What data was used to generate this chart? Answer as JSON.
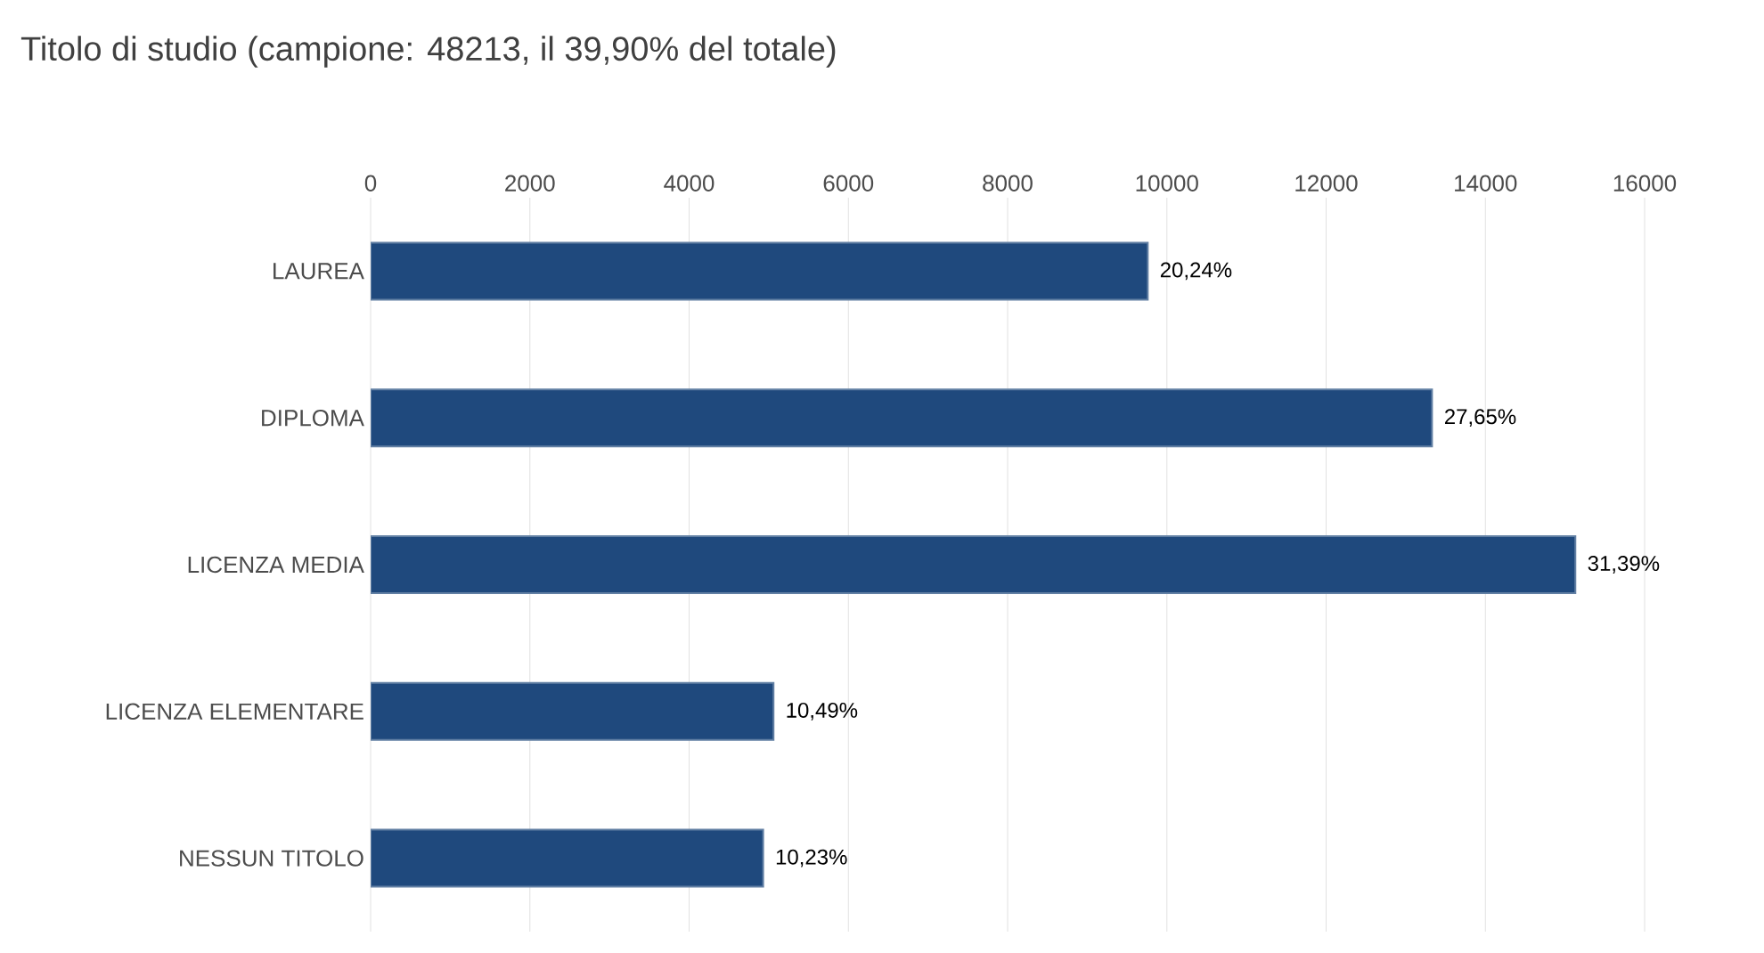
{
  "chart_data": {
    "type": "bar",
    "orientation": "horizontal",
    "title": "Titolo di studio (campione: 48213, il 39,90% del totale)",
    "categories": [
      "LAUREA",
      "DIPLOMA",
      "LICENZA MEDIA",
      "LICENZA ELEMENTARE",
      "NESSUN TITOLO"
    ],
    "values": [
      9760,
      13330,
      15130,
      5060,
      4930
    ],
    "annotations": [
      {
        "text": "20,24%",
        "x": 9760,
        "y": "LAUREA"
      },
      {
        "text": "27,65%",
        "x": 13330,
        "y": "DIPLOMA"
      },
      {
        "text": "31,39%",
        "x": 15130,
        "y": "LICENZA MEDIA"
      },
      {
        "text": "10,49%",
        "x": 5060,
        "y": "LICENZA ELEMENTARE"
      },
      {
        "text": "10,23%",
        "x": 4930,
        "y": "NESSUN TITOLO"
      }
    ],
    "color": "#1f497d",
    "xlim": [
      0,
      16000
    ],
    "xticks": [
      0,
      2000,
      4000,
      6000,
      8000,
      10000,
      12000,
      14000,
      16000
    ],
    "grid": "x"
  }
}
